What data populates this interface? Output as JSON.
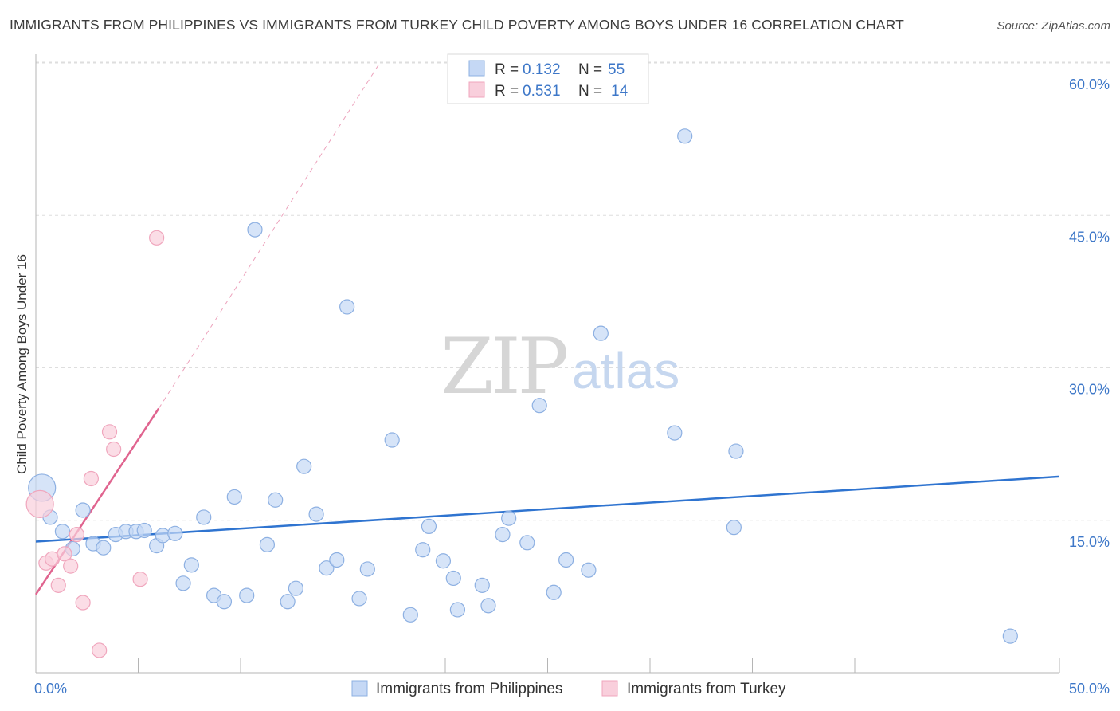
{
  "title": "IMMIGRANTS FROM PHILIPPINES VS IMMIGRANTS FROM TURKEY CHILD POVERTY AMONG BOYS UNDER 16 CORRELATION CHART",
  "source": "Source: ZipAtlas.com",
  "watermark": {
    "zip": "ZIP",
    "atlas": "atlas"
  },
  "legend_top": [
    {
      "r_label": "R =",
      "r_value": "0.132",
      "n_label": "N =",
      "n_value": "55"
    },
    {
      "r_label": "R =",
      "r_value": "0.531",
      "n_label": "N =",
      "n_value": "14"
    }
  ],
  "colors": {
    "philippines_fill": "#c5d8f5",
    "philippines_stroke": "#8db0e2",
    "philippines_line": "#2f74d0",
    "turkey_fill": "#f9cfdc",
    "turkey_stroke": "#f0a6bd",
    "turkey_line": "#e0648f",
    "axis_label": "#3d77c8",
    "grid": "#dedede"
  },
  "chart_data": {
    "type": "scatter",
    "title": "IMMIGRANTS FROM PHILIPPINES VS IMMIGRANTS FROM TURKEY CHILD POVERTY AMONG BOYS UNDER 16 CORRELATION CHART",
    "xlabel": "",
    "ylabel": "Child Poverty Among Boys Under 16",
    "xlim": [
      0,
      50
    ],
    "ylim": [
      0,
      60
    ],
    "x_tick_labels": [
      "0.0%",
      "50.0%"
    ],
    "y_ticks": [
      15,
      30,
      45,
      60
    ],
    "y_tick_labels": [
      "15.0%",
      "30.0%",
      "45.0%",
      "60.0%"
    ],
    "grid": true,
    "legend_position": "top-center",
    "series": [
      {
        "name": "Immigrants from Philippines",
        "r": 0.132,
        "n": 55,
        "trend": {
          "x": [
            0,
            50
          ],
          "y": [
            12.9,
            19.3
          ],
          "dashed_extension": false
        },
        "points": [
          {
            "x": 0.3,
            "y": 18.2,
            "big": true
          },
          {
            "x": 0.7,
            "y": 15.3
          },
          {
            "x": 1.3,
            "y": 13.9
          },
          {
            "x": 1.8,
            "y": 12.2
          },
          {
            "x": 2.3,
            "y": 16.0
          },
          {
            "x": 2.8,
            "y": 12.7
          },
          {
            "x": 3.3,
            "y": 12.3
          },
          {
            "x": 3.9,
            "y": 13.6
          },
          {
            "x": 4.4,
            "y": 13.9
          },
          {
            "x": 4.9,
            "y": 13.9
          },
          {
            "x": 5.3,
            "y": 14.0
          },
          {
            "x": 5.9,
            "y": 12.5
          },
          {
            "x": 6.2,
            "y": 13.5
          },
          {
            "x": 6.8,
            "y": 13.7
          },
          {
            "x": 7.2,
            "y": 8.8
          },
          {
            "x": 7.6,
            "y": 10.6
          },
          {
            "x": 8.2,
            "y": 15.3
          },
          {
            "x": 8.7,
            "y": 7.6
          },
          {
            "x": 9.2,
            "y": 7.0
          },
          {
            "x": 9.7,
            "y": 17.3
          },
          {
            "x": 10.3,
            "y": 7.6
          },
          {
            "x": 10.7,
            "y": 43.6
          },
          {
            "x": 11.3,
            "y": 12.6
          },
          {
            "x": 11.7,
            "y": 17.0
          },
          {
            "x": 12.3,
            "y": 7.0
          },
          {
            "x": 12.7,
            "y": 8.3
          },
          {
            "x": 13.1,
            "y": 20.3
          },
          {
            "x": 13.7,
            "y": 15.6
          },
          {
            "x": 14.2,
            "y": 10.3
          },
          {
            "x": 14.7,
            "y": 11.1
          },
          {
            "x": 15.2,
            "y": 36.0
          },
          {
            "x": 15.8,
            "y": 7.3
          },
          {
            "x": 16.2,
            "y": 10.2
          },
          {
            "x": 17.4,
            "y": 22.9
          },
          {
            "x": 18.3,
            "y": 5.7
          },
          {
            "x": 18.9,
            "y": 12.1
          },
          {
            "x": 19.2,
            "y": 14.4
          },
          {
            "x": 19.9,
            "y": 11.0
          },
          {
            "x": 20.4,
            "y": 9.3
          },
          {
            "x": 20.6,
            "y": 6.2
          },
          {
            "x": 21.8,
            "y": 8.6
          },
          {
            "x": 22.1,
            "y": 6.6
          },
          {
            "x": 22.8,
            "y": 13.6
          },
          {
            "x": 23.1,
            "y": 15.2
          },
          {
            "x": 24.0,
            "y": 12.8
          },
          {
            "x": 24.6,
            "y": 26.3
          },
          {
            "x": 25.3,
            "y": 7.9
          },
          {
            "x": 25.9,
            "y": 11.1
          },
          {
            "x": 27.0,
            "y": 10.1
          },
          {
            "x": 27.6,
            "y": 33.4
          },
          {
            "x": 31.2,
            "y": 23.6
          },
          {
            "x": 31.7,
            "y": 52.8
          },
          {
            "x": 34.1,
            "y": 14.3
          },
          {
            "x": 34.2,
            "y": 21.8
          },
          {
            "x": 47.6,
            "y": 3.6
          }
        ]
      },
      {
        "name": "Immigrants from Turkey",
        "r": 0.531,
        "n": 14,
        "trend": {
          "x": [
            0,
            6.0
          ],
          "y": [
            7.7,
            26.0
          ],
          "dashed_to": [
            16.8,
            60.0
          ]
        },
        "points": [
          {
            "x": 0.2,
            "y": 16.6,
            "big": true
          },
          {
            "x": 0.5,
            "y": 10.8
          },
          {
            "x": 0.8,
            "y": 11.2
          },
          {
            "x": 1.1,
            "y": 8.6
          },
          {
            "x": 1.4,
            "y": 11.7
          },
          {
            "x": 1.7,
            "y": 10.5
          },
          {
            "x": 2.0,
            "y": 13.6
          },
          {
            "x": 2.3,
            "y": 6.9
          },
          {
            "x": 2.7,
            "y": 19.1
          },
          {
            "x": 3.1,
            "y": 2.2
          },
          {
            "x": 3.6,
            "y": 23.7
          },
          {
            "x": 3.8,
            "y": 22.0
          },
          {
            "x": 5.1,
            "y": 9.2
          },
          {
            "x": 5.9,
            "y": 42.8
          }
        ]
      }
    ]
  },
  "bottom_legend": [
    {
      "label": "Immigrants from Philippines"
    },
    {
      "label": "Immigrants from Turkey"
    }
  ]
}
